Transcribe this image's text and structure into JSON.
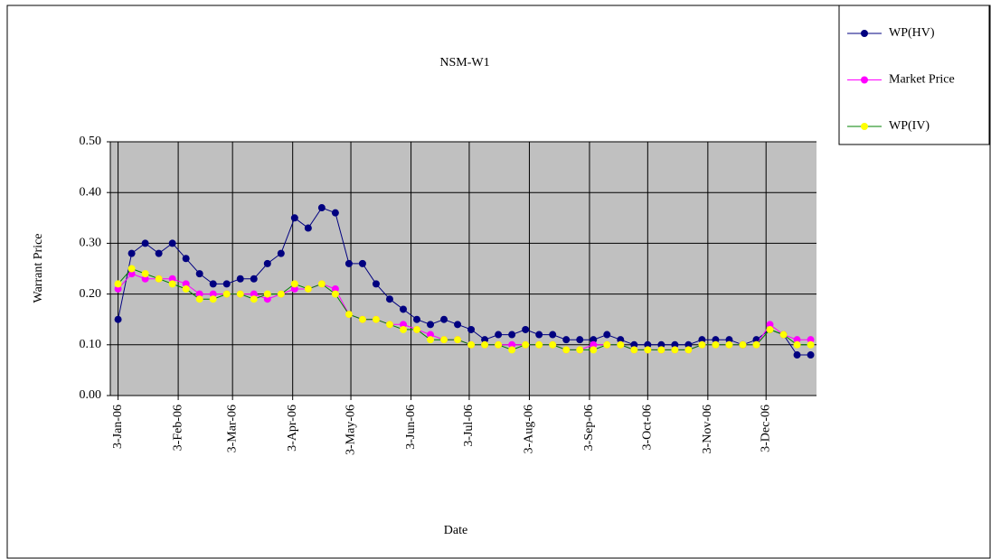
{
  "chart_data": {
    "type": "line",
    "title": "NSM-W1",
    "x_label": "Date",
    "y_label": "Warrant Price",
    "x": [
      "2006-01-03",
      "2006-01-10",
      "2006-01-17",
      "2006-01-24",
      "2006-01-31",
      "2006-02-07",
      "2006-02-14",
      "2006-02-21",
      "2006-02-28",
      "2006-03-07",
      "2006-03-14",
      "2006-03-21",
      "2006-03-28",
      "2006-04-04",
      "2006-04-11",
      "2006-04-18",
      "2006-04-25",
      "2006-05-02",
      "2006-05-09",
      "2006-05-16",
      "2006-05-23",
      "2006-05-30",
      "2006-06-06",
      "2006-06-13",
      "2006-06-20",
      "2006-06-27",
      "2006-07-04",
      "2006-07-11",
      "2006-07-18",
      "2006-07-25",
      "2006-08-01",
      "2006-08-08",
      "2006-08-15",
      "2006-08-22",
      "2006-08-29",
      "2006-09-05",
      "2006-09-12",
      "2006-09-19",
      "2006-09-26",
      "2006-10-03",
      "2006-10-10",
      "2006-10-17",
      "2006-10-24",
      "2006-10-31",
      "2006-11-07",
      "2006-11-14",
      "2006-11-21",
      "2006-11-28",
      "2006-12-05",
      "2006-12-12",
      "2006-12-19",
      "2006-12-26"
    ],
    "series": [
      {
        "name": "WP(HV)",
        "color": "#000080",
        "line_color": "#000080",
        "values": [
          0.15,
          0.28,
          0.3,
          0.28,
          0.3,
          0.27,
          0.24,
          0.22,
          0.22,
          0.23,
          0.23,
          0.26,
          0.28,
          0.35,
          0.33,
          0.37,
          0.36,
          0.26,
          0.26,
          0.22,
          0.19,
          0.17,
          0.15,
          0.14,
          0.15,
          0.14,
          0.13,
          0.11,
          0.12,
          0.12,
          0.13,
          0.12,
          0.12,
          0.11,
          0.11,
          0.11,
          0.12,
          0.11,
          0.1,
          0.1,
          0.1,
          0.1,
          0.1,
          0.11,
          0.11,
          0.11,
          0.1,
          0.11,
          0.13,
          0.12,
          0.08,
          0.08
        ]
      },
      {
        "name": "Market Price",
        "color": "#ff00ff",
        "line_color": "#ff00ff",
        "values": [
          0.21,
          0.24,
          0.23,
          0.23,
          0.23,
          0.22,
          0.2,
          0.2,
          0.2,
          0.2,
          0.2,
          0.19,
          0.2,
          0.21,
          0.21,
          0.22,
          0.21,
          0.16,
          0.15,
          0.15,
          0.14,
          0.14,
          0.13,
          0.12,
          0.11,
          0.11,
          0.1,
          0.1,
          0.1,
          0.1,
          0.1,
          0.1,
          0.1,
          0.09,
          0.09,
          0.1,
          0.1,
          0.1,
          0.09,
          0.09,
          0.09,
          0.09,
          0.09,
          0.1,
          0.1,
          0.1,
          0.1,
          0.1,
          0.14,
          0.12,
          0.11,
          0.11
        ]
      },
      {
        "name": "WP(IV)",
        "color": "#ffff00",
        "line_color": "#008000",
        "values": [
          0.22,
          0.25,
          0.24,
          0.23,
          0.22,
          0.21,
          0.19,
          0.19,
          0.2,
          0.2,
          0.19,
          0.2,
          0.2,
          0.22,
          0.21,
          0.22,
          0.2,
          0.16,
          0.15,
          0.15,
          0.14,
          0.13,
          0.13,
          0.11,
          0.11,
          0.11,
          0.1,
          0.1,
          0.1,
          0.09,
          0.1,
          0.1,
          0.1,
          0.09,
          0.09,
          0.09,
          0.1,
          0.1,
          0.09,
          0.09,
          0.09,
          0.09,
          0.09,
          0.1,
          0.1,
          0.1,
          0.1,
          0.1,
          0.13,
          0.12,
          0.1,
          0.1
        ]
      }
    ],
    "xlim": [
      "2005-12-30",
      "2006-12-29"
    ],
    "xticks": [
      {
        "value": "2006-01-03",
        "label": "3-Jan-06"
      },
      {
        "value": "2006-02-03",
        "label": "3-Feb-06"
      },
      {
        "value": "2006-03-03",
        "label": "3-Mar-06"
      },
      {
        "value": "2006-04-03",
        "label": "3-Apr-06"
      },
      {
        "value": "2006-05-03",
        "label": "3-May-06"
      },
      {
        "value": "2006-06-03",
        "label": "3-Jun-06"
      },
      {
        "value": "2006-07-03",
        "label": "3-Jul-06"
      },
      {
        "value": "2006-08-03",
        "label": "3-Aug-06"
      },
      {
        "value": "2006-09-03",
        "label": "3-Sep-06"
      },
      {
        "value": "2006-10-03",
        "label": "3-Oct-06"
      },
      {
        "value": "2006-11-03",
        "label": "3-Nov-06"
      },
      {
        "value": "2006-12-03",
        "label": "3-Dec-06"
      }
    ],
    "ylim": [
      0,
      0.5
    ],
    "yticks": [
      {
        "value": 0,
        "label": "0.00"
      },
      {
        "value": 0.1,
        "label": "0.10"
      },
      {
        "value": 0.2,
        "label": "0.20"
      },
      {
        "value": 0.3,
        "label": "0.30"
      },
      {
        "value": 0.4,
        "label": "0.40"
      },
      {
        "value": 0.5,
        "label": "0.50"
      }
    ],
    "grid": true,
    "legend": "top-right"
  }
}
